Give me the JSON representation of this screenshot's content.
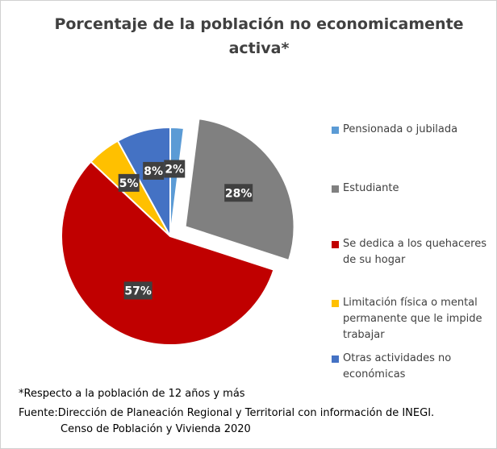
{
  "chart_data": {
    "type": "pie",
    "title": "Porcentaje de la población no economicamente activa*",
    "categories": [
      "Pensionada o jubilada",
      "Estudiante",
      "Se dedica a los quehaceres de su hogar",
      "Limitación física o mental permanente que le impide trabajar",
      "Otras actividades no económicas"
    ],
    "values": [
      2,
      28,
      57,
      5,
      8
    ],
    "value_labels": [
      "2%",
      "28%",
      "57%",
      "5%",
      "8%"
    ],
    "colors": [
      "#5b9bd5",
      "#808080",
      "#c00000",
      "#ffc000",
      "#4472c4"
    ],
    "exploded": [
      "Estudiante"
    ],
    "legend": "right",
    "note": "*Respecto a la población de 12 años y más",
    "source": "Fuente:Dirección de Planeación Regional y Territorial con información de INEGI. Censo de Población y Vivienda 2020"
  }
}
